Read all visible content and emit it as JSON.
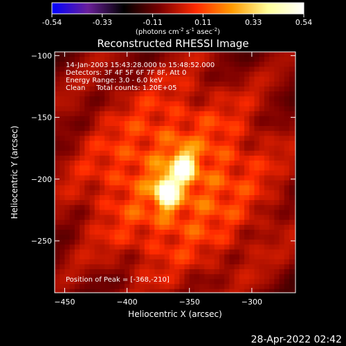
{
  "chart_data": {
    "type": "heatmap",
    "title": "Reconstructed RHESSI Image",
    "xlabel": "Heliocentric X (arcsec)",
    "ylabel": "Heliocentric Y (arcsec)",
    "xlim": [
      -458,
      -265
    ],
    "ylim": [
      -292,
      -97
    ],
    "x_ticks": [
      -450,
      -400,
      -350,
      -300
    ],
    "y_ticks": [
      -100,
      -150,
      -200,
      -250
    ],
    "colorbar": {
      "range": [
        -0.54,
        0.54
      ],
      "ticks": [
        "-0.54",
        "-0.33",
        "-0.11",
        "0.11",
        "0.33",
        "0.54"
      ],
      "label_pre": "(photons cm",
      "label_exp1": "-2",
      "label_mid": " s",
      "label_exp2": "-1",
      "label_post": " asec",
      "label_exp3": "-2",
      "label_end": ")",
      "colormap": [
        "#0000ff",
        "#6a1f9a",
        "#000000",
        "#7a0000",
        "#ff2a00",
        "#ff9a00",
        "#ffff9a",
        "#ffffff"
      ]
    },
    "annotations": [
      "14-Jan-2003 15:43:28.000 to 15:48:52.000",
      "Detectors: 3F 4F 5F 6F 7F 8F, Att 0",
      "Energy Range: 3.0 - 6.0 keV",
      "Clean     Total counts: 1.20E+05"
    ],
    "peak_text": "Position of Peak = [-368,-210]",
    "peak": {
      "x": -368,
      "y": -210,
      "value": 0.54
    },
    "sources": [
      {
        "x": -368,
        "y": -210,
        "peak": 0.54
      },
      {
        "x": -355,
        "y": -190,
        "peak": 0.46
      }
    ]
  },
  "footer": {
    "timestamp": "28-Apr-2022 02:42"
  }
}
